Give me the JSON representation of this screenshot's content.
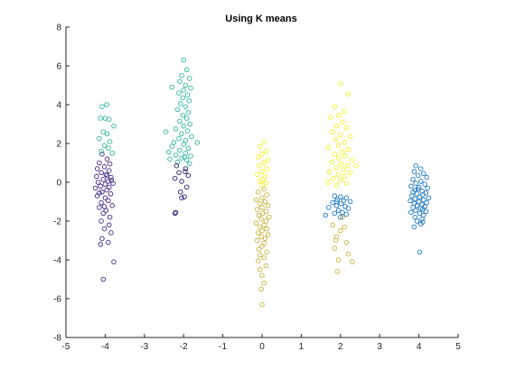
{
  "chart_data": {
    "type": "scatter",
    "title": "Using K means",
    "xlabel": "",
    "ylabel": "",
    "xlim": [
      -5,
      5
    ],
    "ylim": [
      -8,
      8
    ],
    "xticks": [
      -5,
      -4,
      -3,
      -2,
      -1,
      0,
      1,
      2,
      3,
      4,
      5
    ],
    "yticks": [
      -8,
      -6,
      -4,
      -2,
      0,
      2,
      4,
      6,
      8
    ],
    "grid": false,
    "legend": "none",
    "marker": "open-circle",
    "clusters": [
      {
        "color": "#3e2a86",
        "points": [
          [
            -4.08,
            1.45
          ],
          [
            -3.95,
            1.2
          ],
          [
            -4.15,
            1.0
          ],
          [
            -3.88,
            0.95
          ],
          [
            -4.02,
            0.8
          ],
          [
            -4.2,
            0.7
          ],
          [
            -3.9,
            0.6
          ],
          [
            -4.1,
            0.5
          ],
          [
            -3.98,
            0.4
          ],
          [
            -4.22,
            0.3
          ],
          [
            -3.85,
            0.25
          ],
          [
            -4.05,
            0.15
          ],
          [
            -3.92,
            0.05
          ],
          [
            -4.18,
            0.0
          ],
          [
            -3.8,
            -0.05
          ],
          [
            -4.0,
            -0.1
          ],
          [
            -4.12,
            -0.2
          ],
          [
            -3.9,
            -0.25
          ],
          [
            -4.25,
            -0.3
          ],
          [
            -3.96,
            -0.4
          ],
          [
            -4.08,
            -0.5
          ],
          [
            -3.86,
            -0.6
          ],
          [
            -4.2,
            -0.7
          ],
          [
            -4.0,
            -0.8
          ],
          [
            -3.92,
            -0.95
          ],
          [
            -4.1,
            -1.05
          ],
          [
            -3.82,
            -1.2
          ],
          [
            -4.15,
            -1.3
          ],
          [
            -3.98,
            -1.45
          ],
          [
            -4.05,
            -1.6
          ],
          [
            -3.88,
            -1.8
          ],
          [
            -4.1,
            -2.0
          ],
          [
            -3.9,
            -2.2
          ],
          [
            -4.02,
            -2.4
          ],
          [
            -3.85,
            -2.6
          ],
          [
            -4.08,
            -2.9
          ],
          [
            -3.92,
            -3.1
          ],
          [
            -4.12,
            -3.2
          ],
          [
            -3.78,
            -4.1
          ],
          [
            -4.05,
            -5.0
          ],
          [
            -3.95,
            0.35
          ],
          [
            -4.15,
            -0.55
          ],
          [
            -3.84,
            0.1
          ],
          [
            -4.02,
            -1.25
          ]
        ]
      },
      {
        "color": "#2fb5a0",
        "points": [
          [
            -4.08,
            3.9
          ],
          [
            -3.96,
            4.0
          ],
          [
            -4.12,
            3.3
          ],
          [
            -4.0,
            3.3
          ],
          [
            -3.9,
            3.25
          ],
          [
            -3.78,
            2.9
          ],
          [
            -4.05,
            2.6
          ],
          [
            -3.95,
            2.5
          ],
          [
            -4.15,
            2.25
          ],
          [
            -3.88,
            2.1
          ],
          [
            -4.02,
            1.9
          ],
          [
            -3.92,
            1.75
          ],
          [
            -4.1,
            1.6
          ],
          [
            -3.82,
            1.5
          ],
          [
            -2.0,
            6.3
          ],
          [
            -1.92,
            5.8
          ],
          [
            -2.05,
            5.5
          ],
          [
            -1.85,
            5.35
          ],
          [
            -2.1,
            5.2
          ],
          [
            -1.95,
            5.0
          ],
          [
            -1.82,
            4.85
          ],
          [
            -2.0,
            4.75
          ],
          [
            -2.3,
            4.9
          ],
          [
            -2.12,
            4.6
          ],
          [
            -1.9,
            4.5
          ],
          [
            -2.02,
            4.35
          ],
          [
            -1.86,
            4.2
          ],
          [
            -2.08,
            4.05
          ],
          [
            -1.95,
            3.9
          ],
          [
            -2.15,
            3.75
          ],
          [
            -1.88,
            3.6
          ],
          [
            -2.02,
            3.45
          ],
          [
            -1.92,
            3.3
          ],
          [
            -2.1,
            3.15
          ],
          [
            -1.84,
            3.0
          ],
          [
            -2.0,
            2.9
          ],
          [
            -2.2,
            2.75
          ],
          [
            -1.9,
            2.65
          ],
          [
            -2.05,
            2.5
          ],
          [
            -2.45,
            2.6
          ],
          [
            -1.8,
            2.35
          ],
          [
            -2.12,
            2.25
          ],
          [
            -1.95,
            2.15
          ],
          [
            -2.25,
            2.05
          ],
          [
            -1.65,
            2.05
          ],
          [
            -2.0,
            1.95
          ],
          [
            -2.3,
            1.85
          ],
          [
            -1.88,
            1.75
          ],
          [
            -2.1,
            1.65
          ],
          [
            -2.38,
            1.55
          ],
          [
            -1.95,
            1.5
          ],
          [
            -2.2,
            1.4
          ],
          [
            -1.82,
            1.35
          ],
          [
            -2.05,
            1.25
          ],
          [
            -1.92,
            1.15
          ],
          [
            -2.15,
            1.05
          ],
          [
            -1.85,
            0.95
          ],
          [
            -2.35,
            1.2
          ],
          [
            -1.98,
            1.3
          ]
        ]
      },
      {
        "color": "#2a1f70",
        "points": [
          [
            -2.18,
            0.85
          ],
          [
            -1.95,
            0.7
          ],
          [
            -2.12,
            0.5
          ],
          [
            -1.88,
            0.35
          ],
          [
            -2.22,
            0.2
          ],
          [
            -2.05,
            0.05
          ],
          [
            -1.92,
            -0.25
          ],
          [
            -2.08,
            -0.5
          ],
          [
            -1.98,
            -0.75
          ],
          [
            -2.05,
            -0.8
          ],
          [
            -2.2,
            -1.55
          ],
          [
            -2.22,
            -1.6
          ],
          [
            -1.96,
            0.55
          ]
        ]
      },
      {
        "color": "#f5ef22",
        "points": [
          [
            0.05,
            2.1
          ],
          [
            -0.05,
            1.85
          ],
          [
            0.1,
            1.6
          ],
          [
            0.0,
            1.45
          ],
          [
            -0.1,
            1.3
          ],
          [
            0.15,
            1.15
          ],
          [
            0.05,
            1.0
          ],
          [
            -0.08,
            0.85
          ],
          [
            0.12,
            0.7
          ],
          [
            0.0,
            0.55
          ],
          [
            -0.12,
            0.4
          ],
          [
            0.08,
            0.3
          ],
          [
            0.02,
            0.15
          ],
          [
            -0.05,
            0.05
          ],
          [
            0.1,
            -0.05
          ],
          [
            0.0,
            -0.15
          ],
          [
            2.0,
            5.1
          ],
          [
            2.2,
            4.55
          ],
          [
            1.85,
            3.9
          ],
          [
            2.1,
            3.65
          ],
          [
            1.95,
            3.45
          ],
          [
            1.75,
            3.35
          ],
          [
            2.05,
            3.1
          ],
          [
            1.9,
            2.9
          ],
          [
            2.15,
            2.8
          ],
          [
            1.8,
            2.6
          ],
          [
            2.0,
            2.45
          ],
          [
            2.25,
            2.35
          ],
          [
            1.88,
            2.2
          ],
          [
            2.1,
            2.05
          ],
          [
            1.95,
            1.9
          ],
          [
            1.7,
            1.8
          ],
          [
            2.2,
            1.7
          ],
          [
            2.05,
            1.55
          ],
          [
            1.85,
            1.45
          ],
          [
            2.12,
            1.35
          ],
          [
            1.95,
            1.25
          ],
          [
            2.3,
            1.15
          ],
          [
            1.78,
            1.05
          ],
          [
            2.02,
            0.95
          ],
          [
            2.18,
            0.85
          ],
          [
            1.9,
            0.75
          ],
          [
            2.08,
            0.65
          ],
          [
            1.72,
            0.55
          ],
          [
            2.25,
            0.5
          ],
          [
            1.95,
            0.4
          ],
          [
            2.1,
            0.3
          ],
          [
            1.82,
            0.2
          ],
          [
            2.0,
            0.1
          ],
          [
            1.68,
            0.0
          ],
          [
            2.15,
            -0.05
          ],
          [
            1.9,
            -0.15
          ],
          [
            2.4,
            0.85
          ]
        ]
      },
      {
        "color": "#c9b23a",
        "points": [
          [
            0.05,
            -0.35
          ],
          [
            -0.1,
            -0.5
          ],
          [
            0.12,
            -0.65
          ],
          [
            0.0,
            -0.8
          ],
          [
            -0.15,
            -0.9
          ],
          [
            0.08,
            -1.0
          ],
          [
            -0.05,
            -1.1
          ],
          [
            0.15,
            -1.2
          ],
          [
            0.0,
            -1.3
          ],
          [
            -0.12,
            -1.4
          ],
          [
            0.1,
            -1.5
          ],
          [
            0.02,
            -1.6
          ],
          [
            -0.08,
            -1.7
          ],
          [
            0.18,
            -1.8
          ],
          [
            -0.02,
            -1.9
          ],
          [
            0.1,
            -2.0
          ],
          [
            -0.15,
            -2.1
          ],
          [
            0.05,
            -2.2
          ],
          [
            -0.05,
            -2.3
          ],
          [
            0.12,
            -2.4
          ],
          [
            0.0,
            -2.5
          ],
          [
            -0.1,
            -2.6
          ],
          [
            0.15,
            -2.7
          ],
          [
            -0.02,
            -2.8
          ],
          [
            0.08,
            -2.9
          ],
          [
            -0.12,
            -3.0
          ],
          [
            0.05,
            -3.15
          ],
          [
            0.0,
            -3.3
          ],
          [
            -0.08,
            -3.45
          ],
          [
            0.12,
            -3.6
          ],
          [
            -0.05,
            -3.75
          ],
          [
            0.05,
            -3.9
          ],
          [
            -0.1,
            -4.05
          ],
          [
            0.1,
            -4.3
          ],
          [
            -0.05,
            -4.5
          ],
          [
            0.0,
            -4.8
          ],
          [
            0.05,
            -5.2
          ],
          [
            -0.02,
            -5.5
          ],
          [
            0.0,
            -6.3
          ],
          [
            1.8,
            -2.2
          ],
          [
            2.0,
            -2.5
          ],
          [
            1.9,
            -2.8
          ],
          [
            2.15,
            -3.1
          ],
          [
            1.85,
            -3.4
          ],
          [
            2.2,
            -3.7
          ],
          [
            1.95,
            -4.0
          ],
          [
            2.3,
            -4.1
          ],
          [
            1.92,
            -4.6
          ],
          [
            2.05,
            -1.8
          ],
          [
            1.88,
            -3.0
          ],
          [
            2.1,
            -2.3
          ]
        ]
      },
      {
        "color": "#1f78c1",
        "points": [
          [
            1.85,
            -0.7
          ],
          [
            2.0,
            -0.75
          ],
          [
            2.15,
            -0.8
          ],
          [
            1.92,
            -0.9
          ],
          [
            2.08,
            -0.95
          ],
          [
            2.25,
            -1.0
          ],
          [
            1.8,
            -1.05
          ],
          [
            2.02,
            -1.1
          ],
          [
            1.9,
            -1.2
          ],
          [
            2.12,
            -1.25
          ],
          [
            1.7,
            -1.3
          ],
          [
            2.2,
            -1.35
          ],
          [
            1.95,
            -1.45
          ],
          [
            2.05,
            -1.55
          ],
          [
            1.85,
            -1.6
          ],
          [
            2.15,
            -1.65
          ],
          [
            1.62,
            -1.7
          ],
          [
            2.0,
            -1.8
          ],
          [
            1.9,
            -1.0
          ],
          [
            3.92,
            0.85
          ],
          [
            4.05,
            0.7
          ],
          [
            3.88,
            0.55
          ],
          [
            4.12,
            0.45
          ],
          [
            3.98,
            0.35
          ],
          [
            4.2,
            0.25
          ],
          [
            3.85,
            0.15
          ],
          [
            4.05,
            0.05
          ],
          [
            3.92,
            -0.05
          ],
          [
            4.15,
            -0.1
          ],
          [
            3.8,
            -0.2
          ],
          [
            4.0,
            -0.25
          ],
          [
            4.22,
            -0.3
          ],
          [
            3.9,
            -0.4
          ],
          [
            4.08,
            -0.45
          ],
          [
            3.85,
            -0.5
          ],
          [
            4.18,
            -0.55
          ],
          [
            3.95,
            -0.6
          ],
          [
            4.1,
            -0.65
          ],
          [
            3.82,
            -0.7
          ],
          [
            4.02,
            -0.75
          ],
          [
            4.25,
            -0.8
          ],
          [
            3.9,
            -0.85
          ],
          [
            4.12,
            -0.9
          ],
          [
            3.78,
            -0.95
          ],
          [
            4.0,
            -1.0
          ],
          [
            4.2,
            -1.05
          ],
          [
            3.88,
            -1.1
          ],
          [
            4.08,
            -1.15
          ],
          [
            3.95,
            -1.2
          ],
          [
            4.15,
            -1.25
          ],
          [
            3.85,
            -1.3
          ],
          [
            4.05,
            -1.35
          ],
          [
            3.92,
            -1.45
          ],
          [
            4.18,
            -1.5
          ],
          [
            3.8,
            -1.55
          ],
          [
            4.02,
            -1.6
          ],
          [
            4.12,
            -1.7
          ],
          [
            3.9,
            -1.8
          ],
          [
            4.08,
            -1.9
          ],
          [
            3.95,
            -2.0
          ],
          [
            4.05,
            -2.15
          ],
          [
            3.88,
            -2.3
          ],
          [
            4.1,
            -2.05
          ],
          [
            4.02,
            -3.6
          ],
          [
            3.98,
            -0.35
          ],
          [
            4.1,
            -1.4
          ]
        ]
      }
    ]
  }
}
